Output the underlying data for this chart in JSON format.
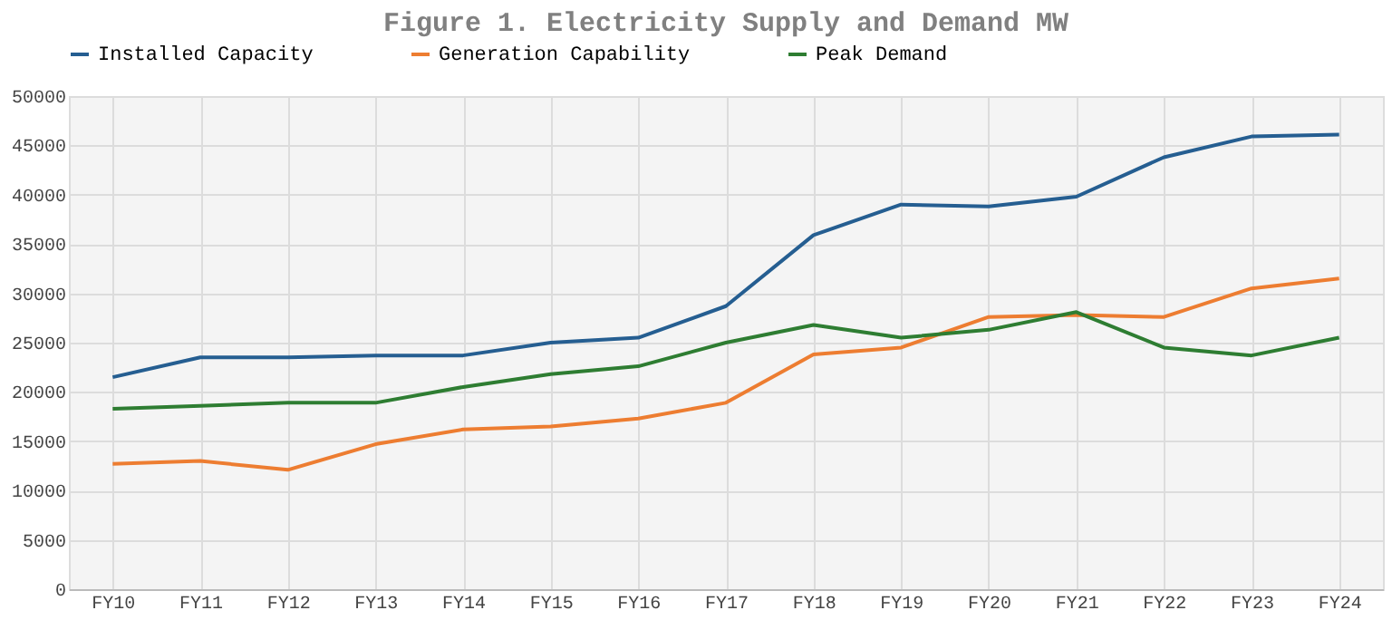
{
  "chart_data": {
    "type": "line",
    "title": "Figure 1. Electricity Supply and Demand MW",
    "categories": [
      "FY10",
      "FY11",
      "FY12",
      "FY13",
      "FY14",
      "FY15",
      "FY16",
      "FY17",
      "FY18",
      "FY19",
      "FY20",
      "FY21",
      "FY22",
      "FY23",
      "FY24"
    ],
    "series": [
      {
        "name": "Installed Capacity",
        "color": "#255e91",
        "values": [
          21500,
          23500,
          23500,
          23700,
          23700,
          25000,
          25500,
          28700,
          35900,
          39000,
          38800,
          39800,
          43800,
          45900,
          46100
        ]
      },
      {
        "name": "Generation Capability",
        "color": "#ed7d31",
        "values": [
          12700,
          13000,
          12100,
          14700,
          16200,
          16500,
          17300,
          18900,
          23800,
          24500,
          27600,
          27800,
          27600,
          30500,
          31500
        ]
      },
      {
        "name": "Peak Demand",
        "color": "#2e7d32",
        "values": [
          18300,
          18600,
          18900,
          18900,
          20500,
          21800,
          22600,
          25000,
          26800,
          25500,
          26300,
          28100,
          24500,
          23700,
          25500
        ]
      }
    ],
    "ylim": [
      0,
      50000
    ],
    "yticks": [
      0,
      5000,
      10000,
      15000,
      20000,
      25000,
      30000,
      35000,
      40000,
      45000,
      50000
    ],
    "grid": true,
    "legend": "top",
    "marker": "none",
    "line_style": "solid"
  }
}
